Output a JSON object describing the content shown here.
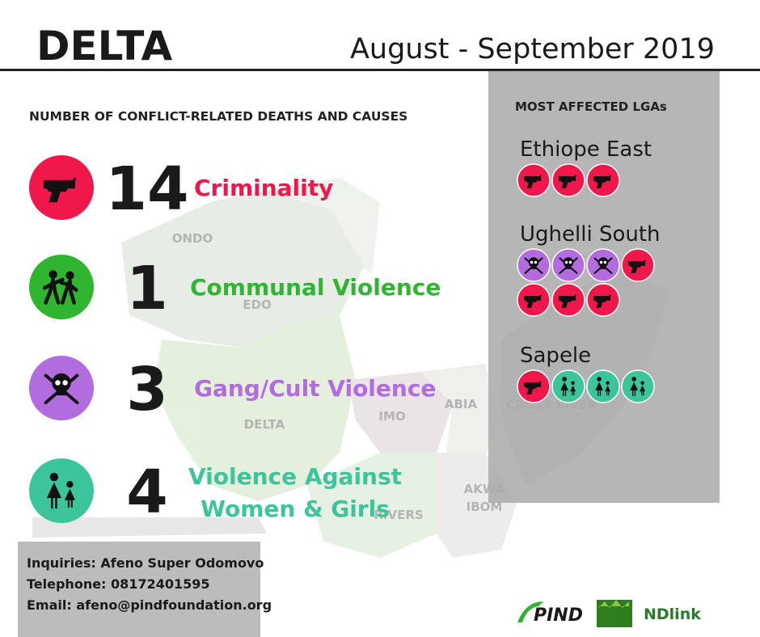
{
  "header": {
    "title": "DELTA",
    "period": "August - September 2019"
  },
  "section_title": "NUMBER OF CONFLICT-RELATED DEATHS AND CAUSES",
  "causes": [
    {
      "count": 14,
      "label": [
        "Criminality"
      ],
      "color": "#f0184a"
    },
    {
      "count": 1,
      "label": [
        "Communal Violence"
      ],
      "color": "#2fb52f"
    },
    {
      "count": 3,
      "label": [
        "Gang/Cult Violence"
      ],
      "color": "#b36be0"
    },
    {
      "count": 4,
      "label": [
        "Violence Against",
        "Women & Girls"
      ],
      "color": "#3cc49a"
    }
  ],
  "map_labels": [
    [
      "ONDO"
    ],
    [
      "EDO"
    ],
    [
      "DELTA"
    ],
    [
      "IMO"
    ],
    [
      "ABIA"
    ],
    [
      "RIVERS"
    ],
    [
      "AKWA",
      "IBOM"
    ],
    [
      "CROSS RIVER"
    ]
  ],
  "lga_panel": {
    "title": "MOST AFFECTED LGAs",
    "lgas": [
      {
        "name": "Ethiope East",
        "icons": [
          0,
          0,
          0
        ]
      },
      {
        "name": "Ughelli South",
        "icons": [
          2,
          2,
          2,
          0,
          0,
          0,
          0
        ]
      },
      {
        "name": "Sapele",
        "icons": [
          0,
          3,
          3,
          3
        ]
      }
    ]
  },
  "contact": [
    "Inquiries: Afeno Super Odomovo",
    "Telephone: 08172401595",
    "Email: afeno@pindfoundation.org"
  ],
  "logos": [
    "PIND",
    "NDlink"
  ]
}
